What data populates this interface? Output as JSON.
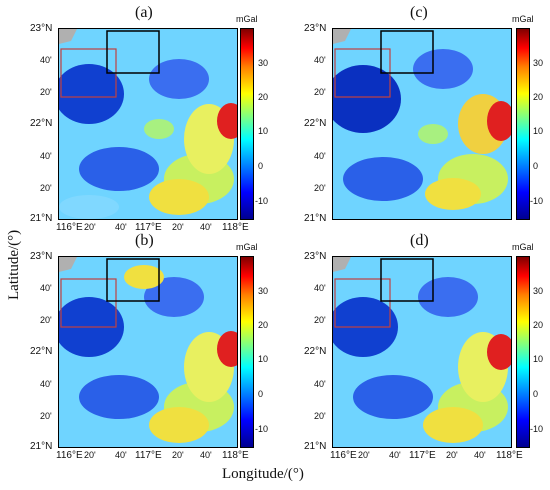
{
  "axes": {
    "xlabel": "Longitude/(°)",
    "ylabel": "Latitude/(°)"
  },
  "colorbar": {
    "unit": "mGal",
    "ticks": [
      "30",
      "20",
      "10",
      "0",
      "-10"
    ]
  },
  "lat_ticks": [
    "23°N",
    "40'",
    "20'",
    "22°N",
    "40'",
    "20'",
    "21°N"
  ],
  "lon_ticks": [
    "116°E",
    "20'",
    "40'",
    "117°E",
    "20'",
    "40'",
    "118°E"
  ],
  "panels": [
    {
      "label": "(a)"
    },
    {
      "label": "(c)"
    },
    {
      "label": "(b)"
    },
    {
      "label": "(d)"
    }
  ],
  "colors": {
    "frame": "#000000",
    "red_box": "#c04040",
    "black_box": "#000000",
    "land": "#b0b0b0"
  }
}
